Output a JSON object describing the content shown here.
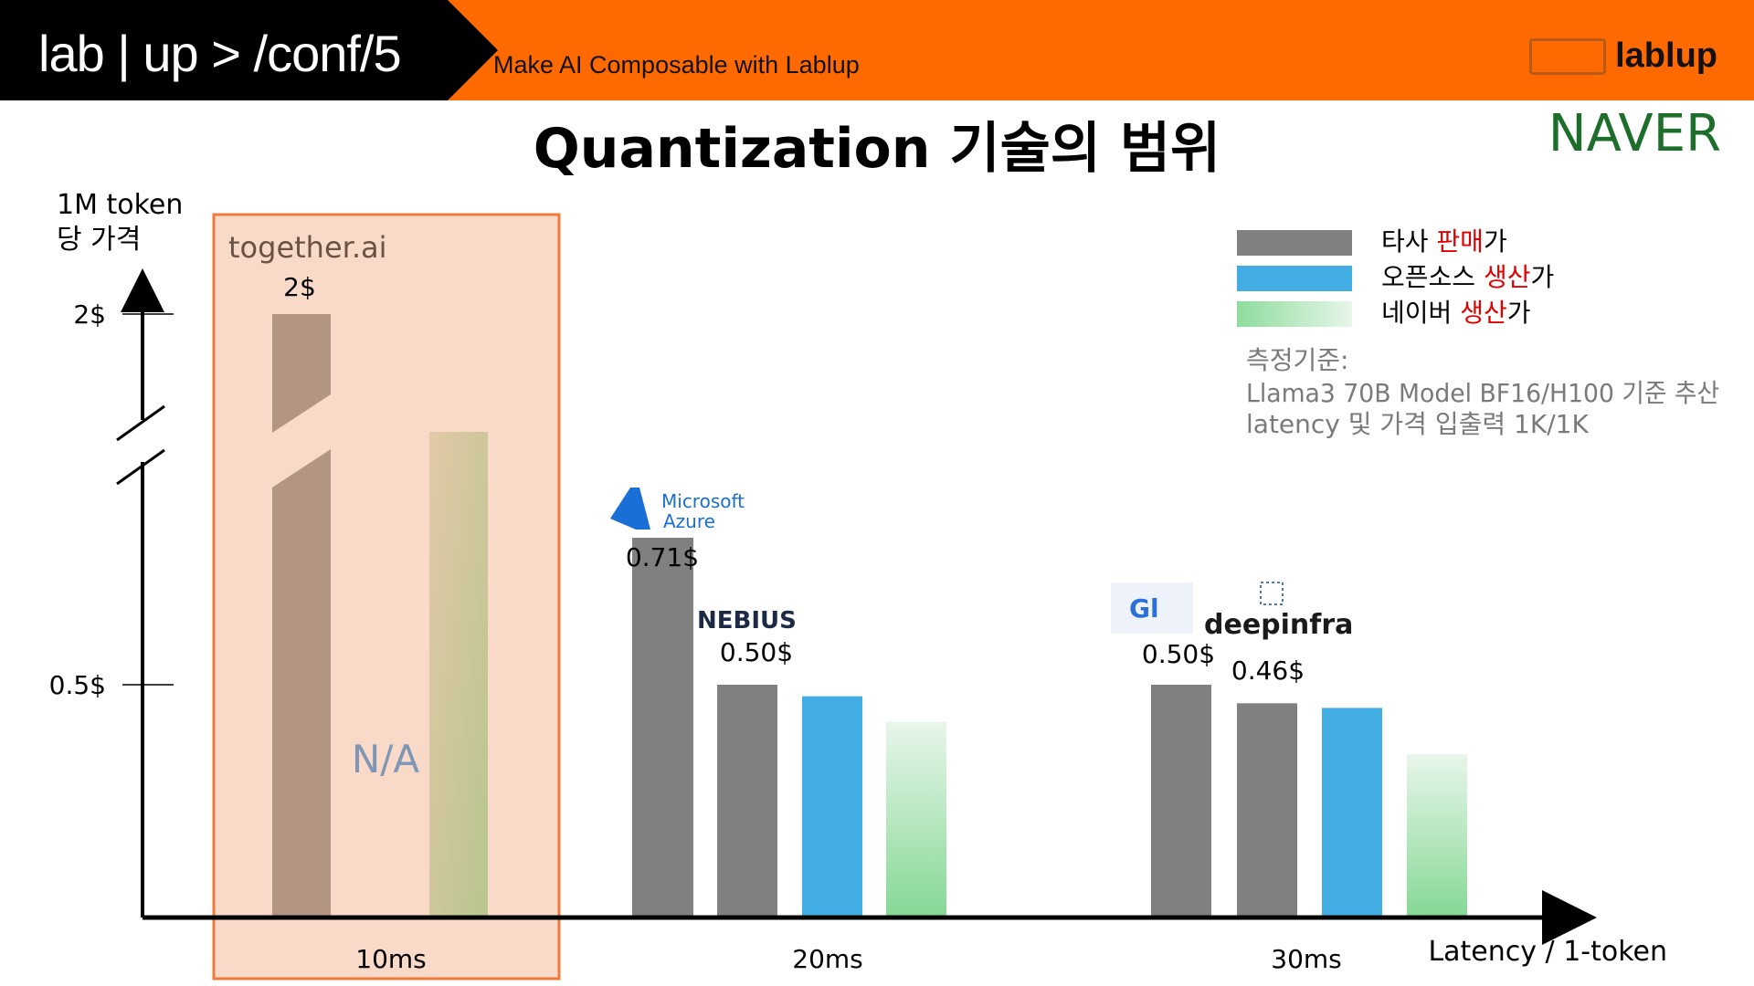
{
  "header": {
    "brand": "lab | up > /conf/5",
    "tagline": "Make AI Composable with Lablup",
    "logo_text": "lablup"
  },
  "slide": {
    "title": "Quantization 기술의 범위",
    "naver": "NAVER"
  },
  "chart_data": {
    "type": "bar",
    "ylabel_lines": [
      "1M token",
      "당 가격"
    ],
    "xlabel": "Latency / 1-token",
    "y_ticks": [
      {
        "value": 2,
        "label": "2$"
      },
      {
        "value": 0.5,
        "label": "0.5$"
      }
    ],
    "y_axis_break": true,
    "categories": [
      "10ms",
      "20ms",
      "30ms"
    ],
    "groups": [
      {
        "category": "10ms",
        "highlight": true,
        "provider": "together.ai",
        "na_label": "N/A",
        "bars": [
          {
            "series": "타사 판매가",
            "value": 2.0,
            "label": "2$"
          },
          {
            "series": "네이버 생산가",
            "value": 1.12
          }
        ]
      },
      {
        "category": "20ms",
        "providers": [
          "Microsoft Azure",
          "NEBIUS"
        ],
        "bars": [
          {
            "series": "타사 판매가",
            "value": 0.71,
            "label": "0.71$",
            "provider": "Microsoft Azure"
          },
          {
            "series": "타사 판매가",
            "value": 0.5,
            "label": "0.50$",
            "provider": "NEBIUS"
          },
          {
            "series": "오픈소스 생산가",
            "value": 0.475
          },
          {
            "series": "네이버 생산가",
            "value": 0.42
          }
        ]
      },
      {
        "category": "30ms",
        "providers": [
          "Gl",
          "deepinfra"
        ],
        "bars": [
          {
            "series": "타사 판매가",
            "value": 0.5,
            "label": "0.50$",
            "provider": "Gl"
          },
          {
            "series": "타사 판매가",
            "value": 0.46,
            "label": "0.46$",
            "provider": "deepinfra"
          },
          {
            "series": "오픈소스 생산가",
            "value": 0.45
          },
          {
            "series": "네이버 생산가",
            "value": 0.35
          }
        ]
      }
    ],
    "legend": [
      {
        "prefix": "타사 ",
        "highlight": "판매",
        "suffix": "가",
        "color": "#808080"
      },
      {
        "prefix": "오픈소스 ",
        "highlight": "생산",
        "suffix": "가",
        "color": "#42ade2"
      },
      {
        "prefix": "네이버 ",
        "highlight": "생산",
        "suffix": "가",
        "color": "#8fdc9e"
      }
    ],
    "legend_placement": "top-right",
    "note": {
      "title": "측정기준:",
      "lines": [
        "Llama3 70B Model BF16/H100 기준 추산",
        "latency 및 가격 입출력 1K/1K"
      ]
    },
    "colors": {
      "highlight_text": "#e00000",
      "highlight_box": "#f9d9c7",
      "highlight_border": "#f07a3a",
      "other_price": "#808080",
      "opensource": "#42ade2",
      "naver": "#8fdc9e",
      "na_text": "#7f97b5"
    }
  }
}
